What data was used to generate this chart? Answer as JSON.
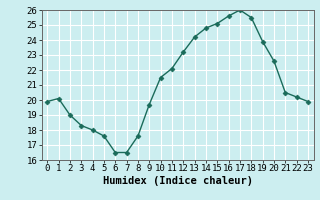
{
  "x": [
    0,
    1,
    2,
    3,
    4,
    5,
    6,
    7,
    8,
    9,
    10,
    11,
    12,
    13,
    14,
    15,
    16,
    17,
    18,
    19,
    20,
    21,
    22,
    23
  ],
  "y": [
    19.9,
    20.1,
    19.0,
    18.3,
    18.0,
    17.6,
    16.5,
    16.5,
    17.6,
    19.7,
    21.5,
    22.1,
    23.2,
    24.2,
    24.8,
    25.1,
    25.6,
    26.0,
    25.5,
    23.9,
    22.6,
    20.5,
    20.2,
    19.9
  ],
  "line_color": "#1a6b5a",
  "marker": "D",
  "marker_size": 2.5,
  "bg_color": "#cceef0",
  "grid_color": "#ffffff",
  "xlabel": "Humidex (Indice chaleur)",
  "xlabel_fontsize": 7.5,
  "tick_fontsize": 6.5,
  "ylim": [
    16,
    26
  ],
  "yticks": [
    16,
    17,
    18,
    19,
    20,
    21,
    22,
    23,
    24,
    25,
    26
  ],
  "xticks": [
    0,
    1,
    2,
    3,
    4,
    5,
    6,
    7,
    8,
    9,
    10,
    11,
    12,
    13,
    14,
    15,
    16,
    17,
    18,
    19,
    20,
    21,
    22,
    23
  ],
  "xlim": [
    -0.5,
    23.5
  ]
}
